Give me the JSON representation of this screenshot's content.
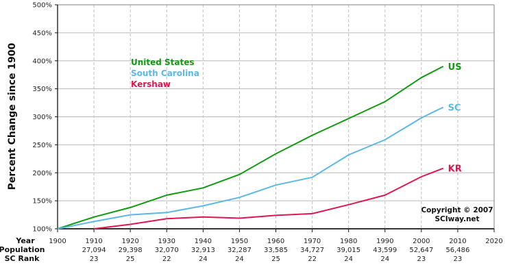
{
  "chart_data": {
    "type": "line",
    "title": "",
    "xlabel": "Year",
    "ylabel": "Percent Change since 1900",
    "ylim": [
      100,
      500
    ],
    "xlim": [
      1900,
      2020
    ],
    "yticks": [
      "100%",
      "150%",
      "200%",
      "250%",
      "300%",
      "350%",
      "400%",
      "450%",
      "500%"
    ],
    "xticks": [
      "1900",
      "1910",
      "1920",
      "1930",
      "1940",
      "1950",
      "1960",
      "1970",
      "1980",
      "1990",
      "2000",
      "2010",
      "2020"
    ],
    "grid": {
      "horizontal": "solid",
      "vertical": "dashed"
    },
    "legend_position": "upper-left inside plot",
    "series": [
      {
        "name": "United States",
        "short_label": "US",
        "color": "#119911",
        "x": [
          1900,
          1910,
          1920,
          1930,
          1940,
          1950,
          1960,
          1970,
          1980,
          1990,
          2000,
          2006
        ],
        "values": [
          100,
          121,
          138,
          160,
          173,
          197,
          234,
          267,
          297,
          327,
          370,
          390
        ]
      },
      {
        "name": "South Carolina",
        "short_label": "SC",
        "color": "#5bb8e6",
        "x": [
          1900,
          1910,
          1920,
          1930,
          1940,
          1950,
          1960,
          1970,
          1980,
          1990,
          2000,
          2006
        ],
        "values": [
          100,
          113,
          125,
          129,
          141,
          156,
          178,
          192,
          232,
          259,
          298,
          317
        ]
      },
      {
        "name": "Kershaw",
        "short_label": "KR",
        "color": "#e0174f",
        "x": [
          1910,
          1920,
          1930,
          1940,
          1950,
          1960,
          1970,
          1980,
          1990,
          2000,
          2006
        ],
        "values": [
          100,
          108,
          118,
          121,
          119,
          124,
          127,
          143,
          160,
          193,
          208
        ]
      }
    ],
    "table_rows": {
      "labels": [
        "Year",
        "Population",
        "SC Rank"
      ],
      "population": [
        "",
        "27,094",
        "29,398",
        "32,070",
        "32,913",
        "32,287",
        "33,585",
        "34,727",
        "39,015",
        "43,599",
        "52,647",
        "56,486",
        ""
      ],
      "sc_rank": [
        "",
        "23",
        "25",
        "22",
        "24",
        "24",
        "25",
        "22",
        "24",
        "24",
        "23",
        "23",
        ""
      ]
    },
    "annotations": [
      "Copyright © 2007",
      "SCIway.net"
    ]
  }
}
